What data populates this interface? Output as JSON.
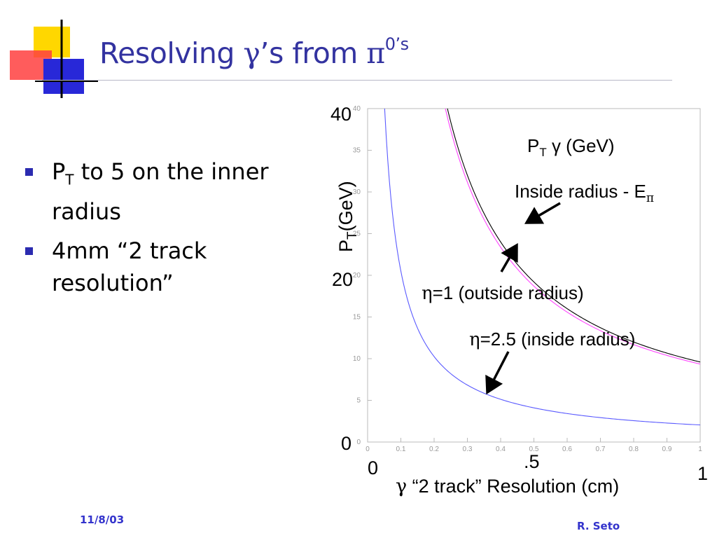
{
  "slide": {
    "title_main": "Resolving ",
    "title_gamma": "γ",
    "title_mid": "’s from ",
    "title_pi": "π",
    "title_sup": "0’s",
    "colors": {
      "title": "#3333a0",
      "bullet": "#2b2bb0",
      "footer": "#3333cc",
      "curve_blue": "#5a5aff",
      "curve_magenta": "#ff44ff",
      "curve_black": "#000000"
    }
  },
  "bullets": [
    {
      "line1_pre": "P",
      "line1_sub": "T",
      "line1_post": " to 5 on the inner",
      "line2": "radius"
    },
    {
      "line1": "4mm “2 track",
      "line2": "resolution”"
    }
  ],
  "footer": {
    "date": "11/8/03",
    "author": "R. Seto"
  },
  "chart_data": {
    "type": "line",
    "x_ticks": [
      "0",
      "0.1",
      "0.2",
      "0.3",
      "0.4",
      "0.5",
      "0.6",
      "0.7",
      "0.8",
      "0.9",
      "1"
    ],
    "y_ticks": [
      "0",
      "5",
      "10",
      "15",
      "20",
      "25",
      "30",
      "35",
      "40"
    ],
    "xlim": [
      0,
      1
    ],
    "ylim": [
      0,
      40
    ],
    "grid": false,
    "big_labels": {
      "y_top": "40",
      "y_mid": "20",
      "y_zero": "0",
      "x_zero": "0",
      "x_mid": ".5",
      "x_one": "1"
    },
    "ylabel_main": "P",
    "ylabel_sub": "T",
    "ylabel_rest": "(GeV)",
    "xlabel_gamma": "γ",
    "xlabel_rest": " “2 track”  Resolution (cm)",
    "annotations": {
      "pt_gamma_a": "P",
      "pt_gamma_sub": "T",
      "pt_gamma_b": " γ (GeV)",
      "inside_radius_a": "Inside radius - E",
      "inside_radius_sub": "π",
      "eta1_greek": "η",
      "eta1_rest": "=1 (outside radius)",
      "eta25_greek": "η",
      "eta25_rest": "=2.5 (inside radius)"
    },
    "series": [
      {
        "k": 2.05,
        "color": "#5a5aff",
        "x": [
          0.05,
          0.1,
          0.2,
          0.3,
          0.4,
          0.5,
          0.6,
          0.7,
          0.8,
          0.9,
          1.0
        ],
        "y": [
          41.0,
          20.5,
          10.25,
          6.83,
          5.13,
          4.1,
          3.42,
          2.93,
          2.56,
          2.28,
          2.05
        ]
      },
      {
        "k": 9.35,
        "color": "#ff44ff",
        "x": [
          0.23,
          0.3,
          0.4,
          0.5,
          0.6,
          0.7,
          0.8,
          0.9,
          1.0
        ],
        "y": [
          40.65,
          31.17,
          23.38,
          18.7,
          15.58,
          13.36,
          11.69,
          10.39,
          9.35
        ]
      },
      {
        "k": 9.6,
        "color": "#000000",
        "x": [
          0.24,
          0.3,
          0.4,
          0.5,
          0.6,
          0.7,
          0.8,
          0.9,
          1.0
        ],
        "y": [
          40.0,
          32.0,
          24.0,
          19.2,
          16.0,
          13.71,
          12.0,
          10.67,
          9.6
        ]
      }
    ]
  }
}
